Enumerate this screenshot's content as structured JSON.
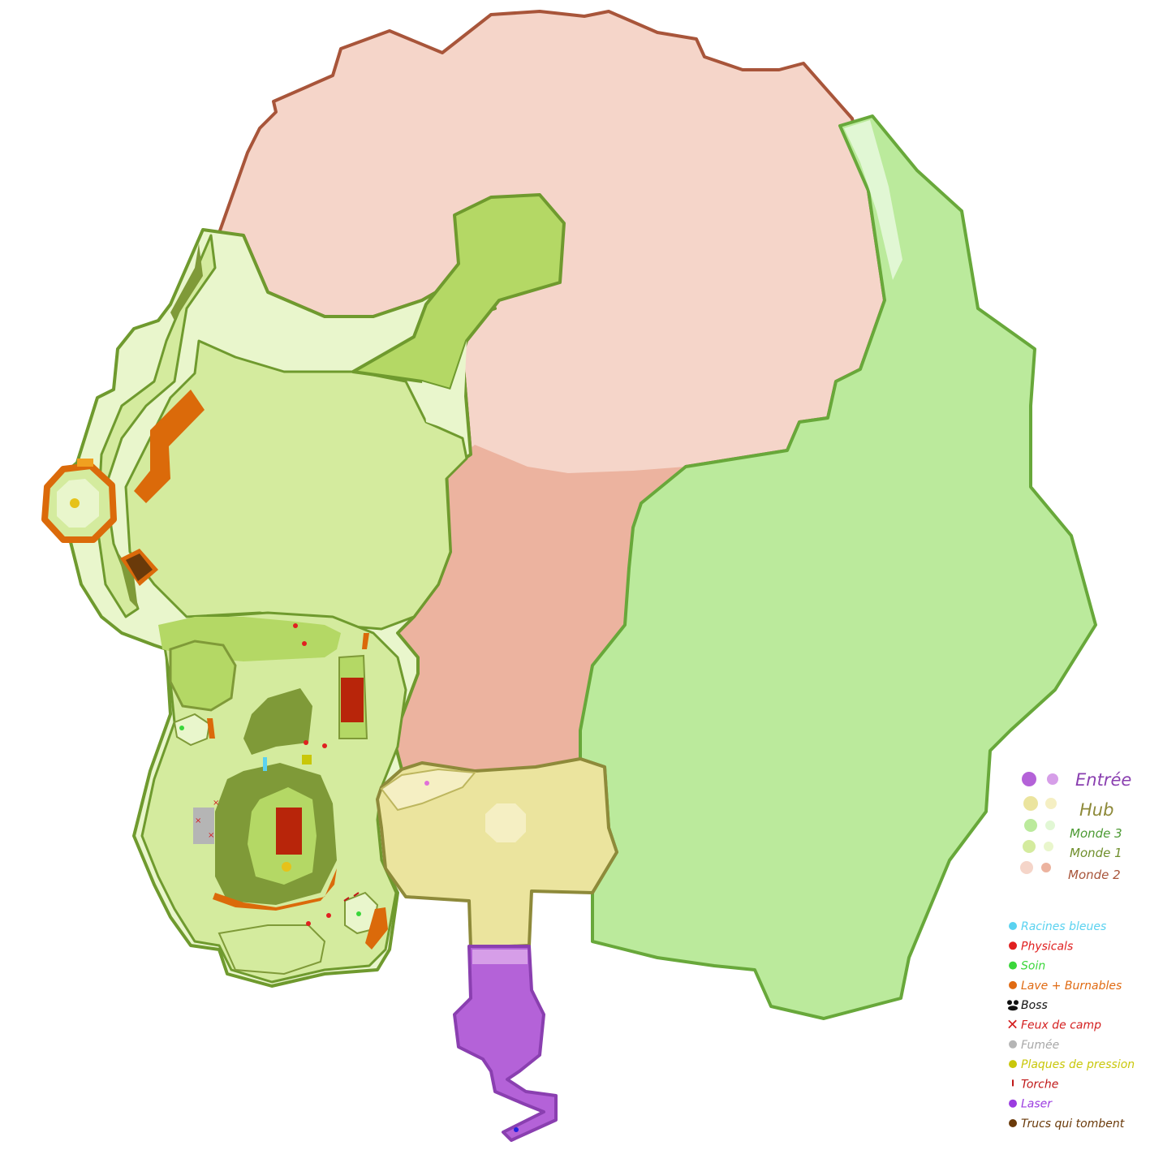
{
  "regions": [
    {
      "name": "Entrée",
      "color": "#b462d8",
      "color_light": "#d69ee8",
      "text_color": "#8a3fb0"
    },
    {
      "name": "Hub",
      "color": "#ebe49e",
      "color_light": "#f5efc3",
      "text_color": "#8e8a3a"
    },
    {
      "name": "Monde 3",
      "color": "#bbea9c",
      "color_light": "#e1f7d4",
      "text_color": "#4c9a33"
    },
    {
      "name": "Monde 1",
      "color": "#d4eb9e",
      "color_light": "#e9f6cc",
      "text_color": "#6f8f2c"
    },
    {
      "name": "Monde 2",
      "color": "#f5d5c9",
      "color_light": "#ecb39f",
      "text_color": "#a8553a"
    }
  ],
  "legend_items": [
    {
      "label": "Racines bleues",
      "color": "#5ad2f0",
      "icon": "dot-icon"
    },
    {
      "label": "Physicals",
      "color": "#e02020",
      "icon": "dot-icon"
    },
    {
      "label": "Soin",
      "color": "#3ad63a",
      "icon": "dot-icon"
    },
    {
      "label": "Lave + Burnables",
      "color": "#e06a12",
      "icon": "dot-icon"
    },
    {
      "label": "Boss",
      "color": "#111111",
      "icon": "boss-icon"
    },
    {
      "label": "Feux de camp",
      "color": "#d42020",
      "icon": "cross-icon"
    },
    {
      "label": "Fumée",
      "color": "#b5b5b5",
      "icon": "dot-icon"
    },
    {
      "label": "Plaques de pression",
      "color": "#c9c70a",
      "icon": "dot-icon"
    },
    {
      "label": "Torche",
      "color": "#c01818",
      "icon": "torch-icon"
    },
    {
      "label": "Laser",
      "color": "#9b3ce0",
      "icon": "dot-icon"
    },
    {
      "label": "Trucs qui tombent",
      "color": "#6a3a0a",
      "icon": "dot-icon"
    }
  ]
}
